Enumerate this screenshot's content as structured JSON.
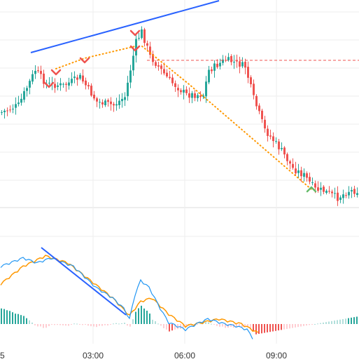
{
  "chart_data": {
    "type": "candlestick",
    "title": "",
    "x_axis": {
      "tick_labels": [
        "5",
        "03:00",
        "06:00",
        "09:00"
      ]
    },
    "colors": {
      "up": "#26a69a",
      "down": "#ef5350",
      "trendline": "#2962ff",
      "macd_line": "#2196f3",
      "signal_line": "#ff9800",
      "hist_up_strong": "#26a69a",
      "hist_up_weak": "#b2dfdb",
      "hist_down_strong": "#ef5350",
      "hist_down_weak": "#ffcdd2",
      "level_line": "#ef5350",
      "divergence_dots": "#ff9800"
    },
    "price_panel": {
      "candles_approx_count": 128,
      "horizontal_level": "dashed red resistance line",
      "trendline": "blue rising line across highs",
      "markers": [
        "down-chevron",
        "down-chevron",
        "down-chevron",
        "down-chevron",
        "up-chevron"
      ]
    },
    "indicator_panel": {
      "type": "MACD",
      "series": [
        "MACD line",
        "Signal line",
        "Histogram"
      ],
      "trendline": "blue falling line"
    }
  }
}
